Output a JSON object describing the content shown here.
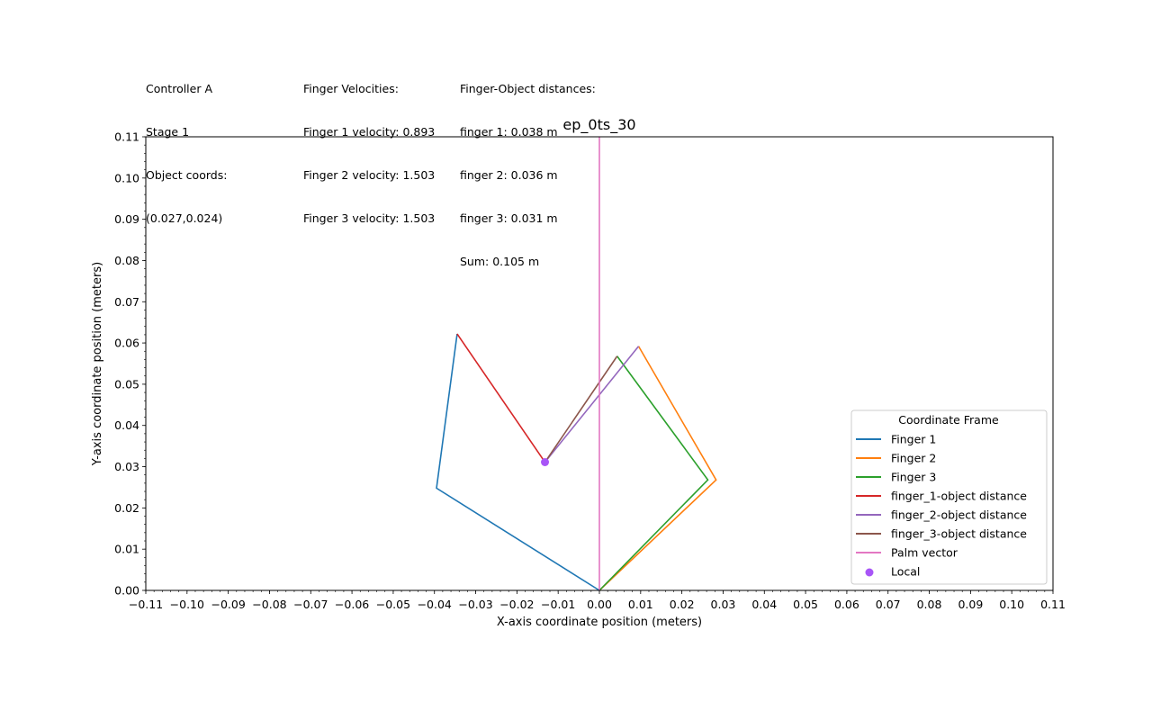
{
  "info": {
    "col1": [
      "Controller A",
      "Stage 1",
      "Object coords:",
      "(0.027,0.024)"
    ],
    "col2": [
      "Finger Velocities:",
      "Finger 1 velocity: 0.893",
      "Finger 2 velocity: 1.503",
      "Finger 3 velocity: 1.503"
    ],
    "col3": [
      "Finger-Object distances:",
      "finger 1: 0.038 m",
      "finger 2: 0.036 m",
      "finger 3: 0.031 m",
      "Sum: 0.105 m"
    ]
  },
  "chart_data": {
    "type": "line",
    "title": "ep_0ts_30",
    "xlabel": "X-axis coordinate position (meters)",
    "ylabel": "Y-axis coordinate position (meters)",
    "xlim": [
      -0.11,
      0.11
    ],
    "ylim": [
      0.0,
      0.11
    ],
    "xticks": [
      -0.11,
      -0.1,
      -0.09,
      -0.08,
      -0.07,
      -0.06,
      -0.05,
      -0.04,
      -0.03,
      -0.02,
      -0.01,
      0.0,
      0.01,
      0.02,
      0.03,
      0.04,
      0.05,
      0.06,
      0.07,
      0.08,
      0.09,
      0.1,
      0.11
    ],
    "xtick_labels": [
      "−0.11",
      "−0.10",
      "−0.09",
      "−0.08",
      "−0.07",
      "−0.06",
      "−0.05",
      "−0.04",
      "−0.03",
      "−0.02",
      "−0.01",
      "0.00",
      "0.01",
      "0.02",
      "0.03",
      "0.04",
      "0.05",
      "0.06",
      "0.07",
      "0.08",
      "0.09",
      "0.10",
      "0.11"
    ],
    "yticks": [
      0.0,
      0.01,
      0.02,
      0.03,
      0.04,
      0.05,
      0.06,
      0.07,
      0.08,
      0.09,
      0.1,
      0.11
    ],
    "ytick_labels": [
      "0.00",
      "0.01",
      "0.02",
      "0.03",
      "0.04",
      "0.05",
      "0.06",
      "0.07",
      "0.08",
      "0.09",
      "0.10",
      "0.11"
    ],
    "minor_ticks": true,
    "grid": false,
    "legend": {
      "title": "Coordinate Frame",
      "placement": "lower right"
    },
    "series": [
      {
        "name": "Finger 1",
        "color": "#1f77b4",
        "x": [
          0.0,
          -0.0395,
          -0.0345
        ],
        "y": [
          0.0,
          0.0248,
          0.0622
        ]
      },
      {
        "name": "Finger 2",
        "color": "#ff7f0e",
        "x": [
          0.0,
          0.0283,
          0.0095
        ],
        "y": [
          0.0,
          0.0268,
          0.0592
        ]
      },
      {
        "name": "Finger 3",
        "color": "#2ca02c",
        "x": [
          0.0,
          0.0263,
          0.0043
        ],
        "y": [
          0.0,
          0.0268,
          0.0568
        ]
      },
      {
        "name": "finger_1-object distance",
        "color": "#d62728",
        "x": [
          -0.0345,
          -0.0132
        ],
        "y": [
          0.0622,
          0.0311
        ]
      },
      {
        "name": "finger_2-object distance",
        "color": "#9467bd",
        "x": [
          0.0095,
          -0.0132
        ],
        "y": [
          0.0592,
          0.0311
        ]
      },
      {
        "name": "finger_3-object distance",
        "color": "#8c564b",
        "x": [
          0.0043,
          -0.0132
        ],
        "y": [
          0.0568,
          0.0311
        ]
      },
      {
        "name": "Palm vector",
        "color": "#e377c2",
        "x": [
          0.0,
          0.0
        ],
        "y": [
          0.0,
          0.11
        ]
      }
    ],
    "points": [
      {
        "name": "Local",
        "color": "#a855f7",
        "x": -0.0132,
        "y": 0.0311
      }
    ]
  }
}
